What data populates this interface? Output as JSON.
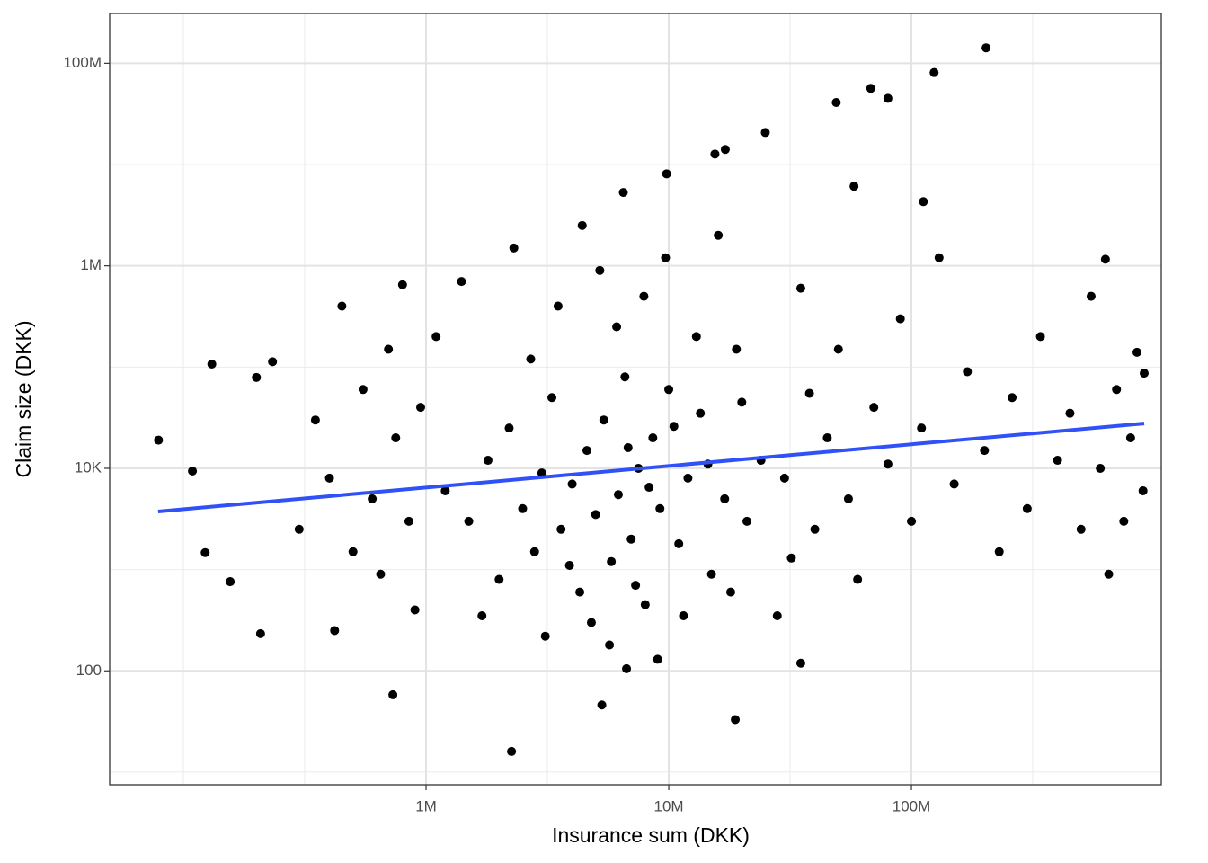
{
  "chart_data": {
    "type": "scatter",
    "xlabel": "Insurance sum (DKK)",
    "ylabel": "Claim size (DKK)",
    "xscale": "log",
    "yscale": "log",
    "grid": true,
    "color": "#000000",
    "xlim": [
      49700,
      1070000000
    ],
    "ylim": [
      7.5,
      310000000
    ],
    "xticks": [
      {
        "value": 1000000,
        "label": "1M"
      },
      {
        "value": 10000000,
        "label": "10M"
      },
      {
        "value": 100000000,
        "label": "100M"
      }
    ],
    "yticks": [
      {
        "value": 100,
        "label": "100"
      },
      {
        "value": 10000,
        "label": "10K"
      },
      {
        "value": 1000000,
        "label": "1M"
      },
      {
        "value": 100000000,
        "label": "100M"
      }
    ],
    "xminorticks": [
      100000,
      316000,
      3160000,
      31600000,
      316000000
    ],
    "yminorticks": [
      10,
      1000,
      100000,
      10000000
    ],
    "x": [
      79000,
      109000,
      123000,
      131000,
      156000,
      208000,
      200000,
      233000,
      730000,
      2250000,
      5300000,
      6700000,
      18800000,
      35000000,
      203000000,
      124000000,
      68000000,
      49000000,
      80000000,
      25000000,
      17100000,
      15500000,
      9800000,
      58000000,
      112000000,
      6500000,
      910000000,
      630000000,
      1200000,
      1500000,
      1800000,
      2000000,
      2200000,
      2500000,
      2800000,
      3000000,
      3300000,
      3600000,
      4000000,
      4300000,
      4600000,
      5000000,
      5400000,
      5800000,
      6200000,
      6600000,
      7000000,
      7500000,
      8000000,
      8600000,
      9200000,
      10000000,
      11000000,
      12000000,
      13500000,
      15000000,
      17000000,
      19000000,
      21000000,
      24000000,
      1100000,
      1400000,
      1700000,
      2300000,
      2700000,
      3100000,
      3500000,
      3900000,
      4400000,
      4800000,
      5200000,
      5700000,
      6100000,
      6800000,
      7300000,
      7900000,
      8300000,
      9000000,
      9700000,
      10500000,
      11500000,
      13000000,
      14500000,
      16000000,
      18000000,
      20000000,
      300000,
      350000,
      400000,
      450000,
      500000,
      550000,
      600000,
      650000,
      700000,
      750000,
      800000,
      850000,
      900000,
      950000,
      420000,
      30000000,
      35000000,
      40000000,
      45000000,
      50000000,
      55000000,
      60000000,
      70000000,
      80000000,
      90000000,
      100000000,
      110000000,
      130000000,
      150000000,
      170000000,
      200000000,
      230000000,
      260000000,
      300000000,
      340000000,
      400000000,
      450000000,
      500000000,
      550000000,
      600000000,
      650000000,
      700000000,
      750000000,
      800000000,
      850000000,
      900000000,
      32000000,
      38000000,
      28000000
    ],
    "values": [
      19000,
      9400,
      1470,
      107000,
      760,
      233,
      79000,
      113000,
      58,
      16,
      46,
      105,
      33,
      119,
      142000000,
      81000000,
      56500000,
      41000000,
      45000000,
      20700000,
      14100000,
      12700000,
      8100000,
      6100000,
      4300000,
      5300000,
      87000,
      1160000,
      6000,
      3000,
      12000,
      800,
      25000,
      4000,
      1500,
      9000,
      50000,
      2500,
      7000,
      600,
      15000,
      3500,
      30000,
      1200,
      5500,
      80000,
      2000,
      10000,
      450,
      20000,
      4000,
      60000,
      1800,
      8000,
      35000,
      900,
      5000,
      150000,
      3000,
      12000,
      200000,
      700000,
      350,
      1500000,
      120000,
      220,
      400000,
      1100,
      2500000,
      300,
      900000,
      180,
      250000,
      16000,
      700,
      500000,
      6500,
      130,
      1200000,
      26000,
      350,
      200000,
      11000,
      2000000,
      600,
      45000,
      2500,
      30000,
      8000,
      400000,
      1500,
      60000,
      5000,
      900,
      150000,
      20000,
      650000,
      3000,
      400,
      40000,
      250,
      8000,
      600000,
      2500,
      20000,
      150000,
      5000,
      800,
      40000,
      11000,
      300000,
      3000,
      25000,
      1200000,
      7000,
      90000,
      15000,
      1500,
      50000,
      4000,
      200000,
      12000,
      35000,
      2500,
      500000,
      10000,
      900,
      60000,
      3000,
      20000,
      140000,
      6000,
      1300,
      55000,
      350
    ],
    "trend": {
      "color": "#3050f8",
      "x": [
        78700,
        910000000
      ],
      "values": [
        3750,
        27700
      ]
    }
  }
}
